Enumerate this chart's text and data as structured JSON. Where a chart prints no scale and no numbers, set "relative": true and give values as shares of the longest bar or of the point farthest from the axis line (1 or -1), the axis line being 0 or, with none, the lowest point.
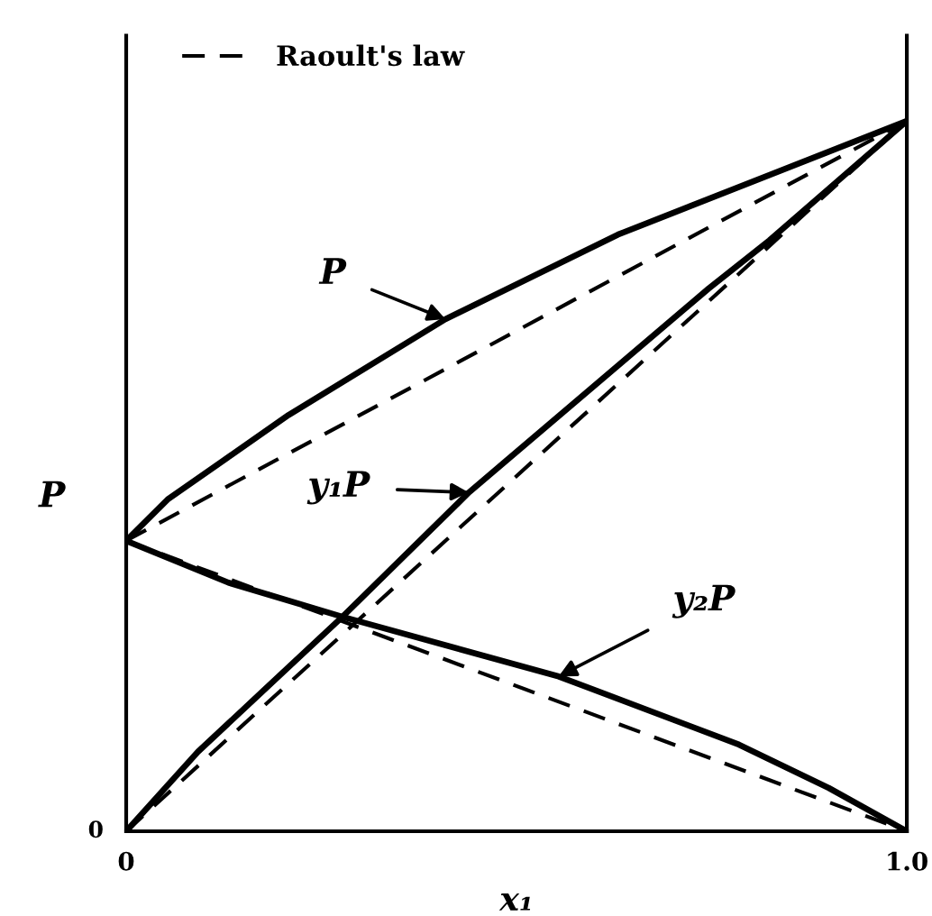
{
  "chart_data": {
    "type": "line",
    "relative": true,
    "xlabel": "x₁",
    "ylabel": "P",
    "xlim": [
      0,
      1
    ],
    "xticks": [
      0,
      {
        "value": 1,
        "label": "1.0"
      }
    ],
    "series": [
      {
        "color": "#000000",
        "line_style": "solid",
        "x": [
          0,
          0.053,
          0.208,
          0.409,
          0.63,
          0.824,
          1
        ],
        "values": [
          0.409,
          0.467,
          0.586,
          0.721,
          0.84,
          0.924,
          1
        ]
      },
      {
        "color": "#000000",
        "line_style": "solid",
        "x": [
          0,
          0.092,
          0.277,
          0.439,
          0.746,
          0.824,
          1
        ],
        "values": [
          0,
          0.112,
          0.302,
          0.477,
          0.764,
          0.832,
          1
        ]
      },
      {
        "color": "#000000",
        "line_style": "solid",
        "x": [
          0,
          0.131,
          0.277,
          0.554,
          0.785,
          0.9,
          1
        ],
        "values": [
          0.409,
          0.35,
          0.302,
          0.218,
          0.122,
          0.061,
          0
        ]
      },
      {
        "name": "Raoult's law",
        "color": "#000000",
        "line_style": "dashed",
        "x": [
          0,
          1
        ],
        "values": [
          0.409,
          1
        ]
      },
      {
        "color": "#000000",
        "line_style": "dashed",
        "x": [
          0,
          1
        ],
        "values": [
          0,
          1
        ]
      },
      {
        "color": "#000000",
        "line_style": "dashed",
        "x": [
          0,
          1
        ],
        "values": [
          0.409,
          0
        ]
      }
    ],
    "annotations": [
      {
        "text": "P",
        "x": 0.409,
        "y": 0.721
      },
      {
        "text": "y₁P",
        "x": 0.439,
        "y": 0.477
      },
      {
        "text": "y₂P",
        "x": 0.554,
        "y": 0.218
      },
      {
        "text": "0",
        "x": 0,
        "y": 0
      }
    ],
    "legend": "top left",
    "marker": "none"
  }
}
